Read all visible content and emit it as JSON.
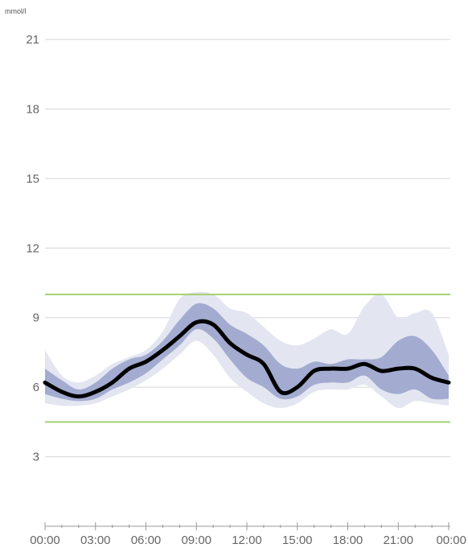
{
  "chart_data": {
    "type": "area",
    "y_unit": "mmol/l",
    "y_ticks": [
      "3",
      "6",
      "9",
      "12",
      "15",
      "18",
      "21"
    ],
    "y_tick_values": [
      3,
      6,
      9,
      12,
      15,
      18,
      21
    ],
    "ylim": [
      0,
      21
    ],
    "x_ticks": [
      "00:00",
      "03:00",
      "06:00",
      "09:00",
      "12:00",
      "15:00",
      "18:00",
      "21:00",
      "00:00"
    ],
    "x_tick_hours": [
      0,
      3,
      6,
      9,
      12,
      15,
      18,
      21,
      24
    ],
    "xlim": [
      0,
      24
    ],
    "target_range": {
      "low": 4.5,
      "high": 10
    },
    "hours": [
      0,
      1,
      2,
      3,
      4,
      5,
      6,
      7,
      8,
      9,
      10,
      11,
      12,
      13,
      14,
      15,
      16,
      17,
      18,
      19,
      20,
      21,
      22,
      23,
      24
    ],
    "median": [
      6.2,
      5.8,
      5.6,
      5.8,
      6.2,
      6.8,
      7.1,
      7.6,
      8.2,
      8.8,
      8.7,
      7.9,
      7.4,
      7.0,
      5.8,
      6.0,
      6.7,
      6.8,
      6.8,
      7.0,
      6.7,
      6.8,
      6.8,
      6.4,
      6.2
    ],
    "p25": [
      5.7,
      5.5,
      5.4,
      5.5,
      5.9,
      6.2,
      6.6,
      7.2,
      7.8,
      8.5,
      8.1,
      7.2,
      6.4,
      6.0,
      5.5,
      5.6,
      6.1,
      6.2,
      6.2,
      6.5,
      5.9,
      5.7,
      5.9,
      5.5,
      5.5
    ],
    "p75": [
      6.8,
      6.3,
      5.9,
      6.2,
      6.8,
      7.2,
      7.4,
      8.0,
      8.9,
      9.6,
      9.4,
      8.7,
      8.3,
      7.8,
      7.0,
      6.8,
      7.1,
      7.0,
      7.2,
      7.2,
      7.3,
      8.0,
      8.2,
      7.6,
      6.5
    ],
    "p10": [
      5.3,
      5.2,
      5.2,
      5.3,
      5.6,
      5.9,
      6.3,
      6.8,
      7.4,
      8.0,
      7.4,
      6.4,
      5.8,
      5.3,
      5.1,
      5.3,
      5.8,
      5.9,
      5.9,
      6.1,
      5.6,
      5.1,
      5.4,
      5.3,
      5.2
    ],
    "p90": [
      7.6,
      6.5,
      6.2,
      6.5,
      7.0,
      7.3,
      7.6,
      8.4,
      9.8,
      10.1,
      10.0,
      9.4,
      9.2,
      8.6,
      8.0,
      7.8,
      8.1,
      8.5,
      8.3,
      9.5,
      10.0,
      9.0,
      9.2,
      9.2,
      7.4
    ],
    "colors": {
      "median": "#000000",
      "iqr_band": "#a3acd0",
      "outer_band": "#e3e6f1",
      "target_line": "#a3d070",
      "grid": "#d6d6d6",
      "axis": "#999999",
      "tick_text": "#666666"
    }
  }
}
